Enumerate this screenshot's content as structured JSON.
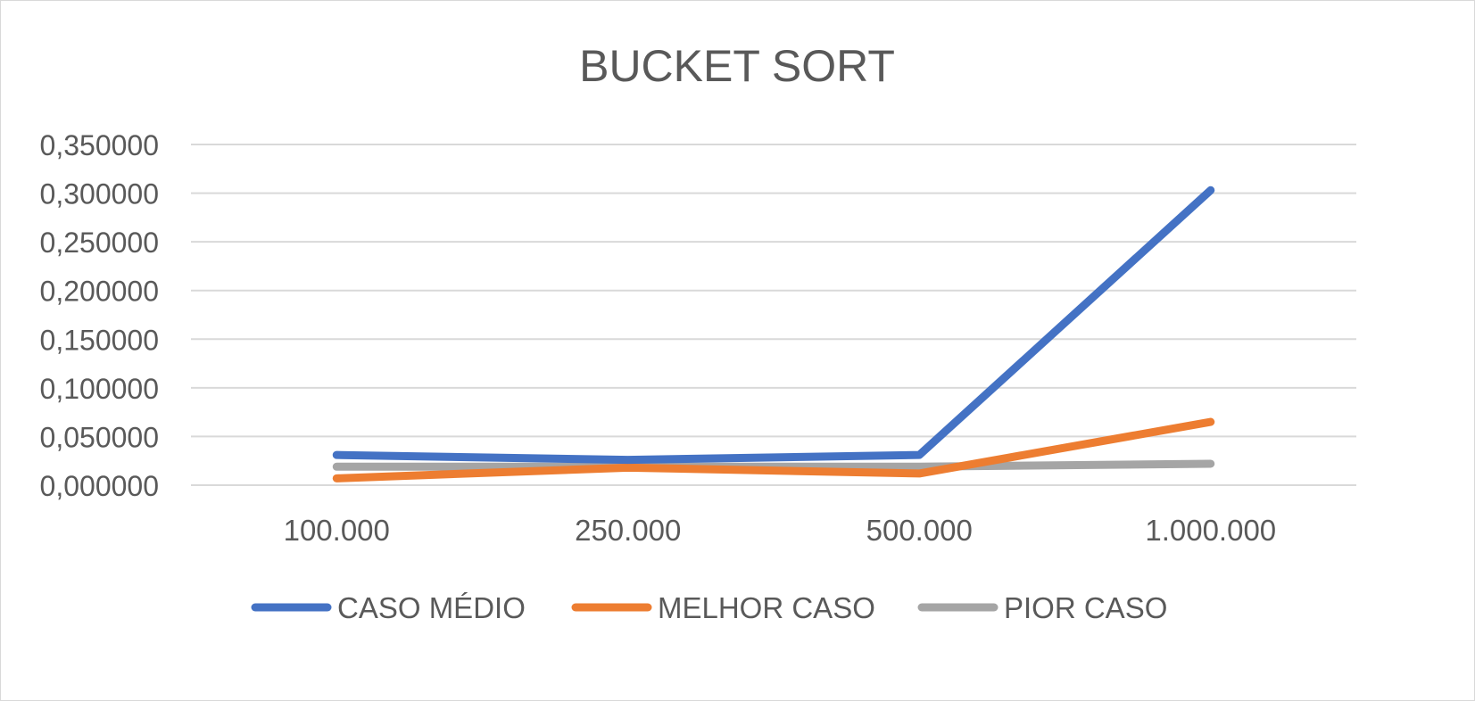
{
  "chart_data": {
    "type": "line",
    "title": "BUCKET SORT",
    "xlabel": "",
    "ylabel": "",
    "categories": [
      "100.000",
      "250.000",
      "500.000",
      "1.000.000"
    ],
    "ylim": [
      0,
      0.35
    ],
    "yticks": [
      0,
      0.05,
      0.1,
      0.15,
      0.2,
      0.25,
      0.3,
      0.35
    ],
    "ytick_labels": [
      "0,000000",
      "0,050000",
      "0,100000",
      "0,150000",
      "0,200000",
      "0,250000",
      "0,300000",
      "0,350000"
    ],
    "grid": true,
    "legend_position": "bottom",
    "series": [
      {
        "name": "CASO MÉDIO",
        "color": "#4472C4",
        "values": [
          0.031,
          0.026,
          0.031,
          0.303
        ]
      },
      {
        "name": "MELHOR CASO",
        "color": "#ED7D31",
        "values": [
          0.007,
          0.018,
          0.012,
          0.065
        ]
      },
      {
        "name": "PIOR CASO",
        "color": "#A5A5A5",
        "values": [
          0.019,
          0.019,
          0.019,
          0.022
        ]
      }
    ]
  }
}
